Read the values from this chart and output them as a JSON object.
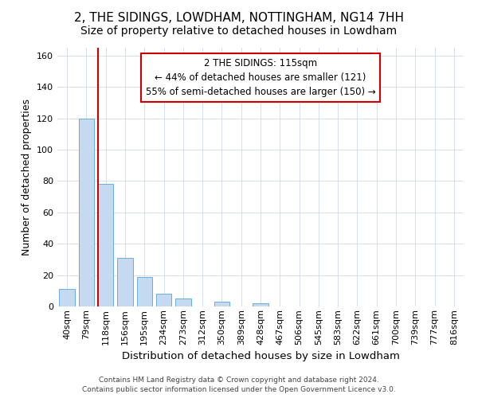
{
  "title": "2, THE SIDINGS, LOWDHAM, NOTTINGHAM, NG14 7HH",
  "subtitle": "Size of property relative to detached houses in Lowdham",
  "xlabel": "Distribution of detached houses by size in Lowdham",
  "ylabel": "Number of detached properties",
  "categories": [
    "40sqm",
    "79sqm",
    "118sqm",
    "156sqm",
    "195sqm",
    "234sqm",
    "273sqm",
    "312sqm",
    "350sqm",
    "389sqm",
    "428sqm",
    "467sqm",
    "506sqm",
    "545sqm",
    "583sqm",
    "622sqm",
    "661sqm",
    "700sqm",
    "739sqm",
    "777sqm",
    "816sqm"
  ],
  "values": [
    11,
    120,
    78,
    31,
    19,
    8,
    5,
    0,
    3,
    0,
    2,
    0,
    0,
    0,
    0,
    0,
    0,
    0,
    0,
    0,
    0
  ],
  "bar_color": "#c5d9f0",
  "bar_edge_color": "#6baed6",
  "vline_color": "#cc0000",
  "vline_x": 2.0,
  "annotation_line1": "2 THE SIDINGS: 115sqm",
  "annotation_line2": "← 44% of detached houses are smaller (121)",
  "annotation_line3": "55% of semi-detached houses are larger (150) →",
  "annotation_box_color": "#ffffff",
  "annotation_box_edge": "#cc0000",
  "footer_line1": "Contains HM Land Registry data © Crown copyright and database right 2024.",
  "footer_line2": "Contains public sector information licensed under the Open Government Licence v3.0.",
  "ylim": [
    0,
    165
  ],
  "yticks": [
    0,
    20,
    40,
    60,
    80,
    100,
    120,
    140,
    160
  ],
  "figsize": [
    6.0,
    5.0
  ],
  "dpi": 100,
  "title_fontsize": 11,
  "subtitle_fontsize": 10,
  "ylabel_fontsize": 9,
  "xlabel_fontsize": 9.5,
  "tick_fontsize": 8,
  "annotation_fontsize": 8.5,
  "footer_fontsize": 6.5
}
